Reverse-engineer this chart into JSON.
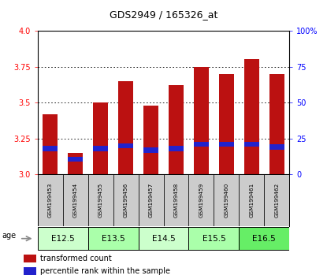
{
  "title": "GDS2949 / 165326_at",
  "samples": [
    "GSM199453",
    "GSM199454",
    "GSM199455",
    "GSM199456",
    "GSM199457",
    "GSM199458",
    "GSM199459",
    "GSM199460",
    "GSM199461",
    "GSM199462"
  ],
  "transformed_counts": [
    3.42,
    3.15,
    3.5,
    3.65,
    3.48,
    3.62,
    3.75,
    3.7,
    3.8,
    3.7
  ],
  "percentile_values": [
    3.18,
    3.105,
    3.18,
    3.2,
    3.17,
    3.18,
    3.21,
    3.21,
    3.21,
    3.19
  ],
  "ylim_left": [
    3.0,
    4.0
  ],
  "ylim_right": [
    0,
    100
  ],
  "yticks_left": [
    3.0,
    3.25,
    3.5,
    3.75,
    4.0
  ],
  "yticks_right": [
    0,
    25,
    50,
    75,
    100
  ],
  "bar_color": "#bb1111",
  "percentile_color": "#2222cc",
  "bar_width": 0.6,
  "sample_bg_color": "#cccccc",
  "age_colors": [
    "#ccffcc",
    "#aaffaa",
    "#ccffcc",
    "#aaffaa",
    "#66ee66"
  ],
  "age_labels": [
    "E12.5",
    "E13.5",
    "E14.5",
    "E15.5",
    "E16.5"
  ],
  "age_ranges": [
    [
      0,
      1
    ],
    [
      2,
      3
    ],
    [
      4,
      5
    ],
    [
      6,
      7
    ],
    [
      8,
      9
    ]
  ],
  "legend_labels": [
    "transformed count",
    "percentile rank within the sample"
  ]
}
